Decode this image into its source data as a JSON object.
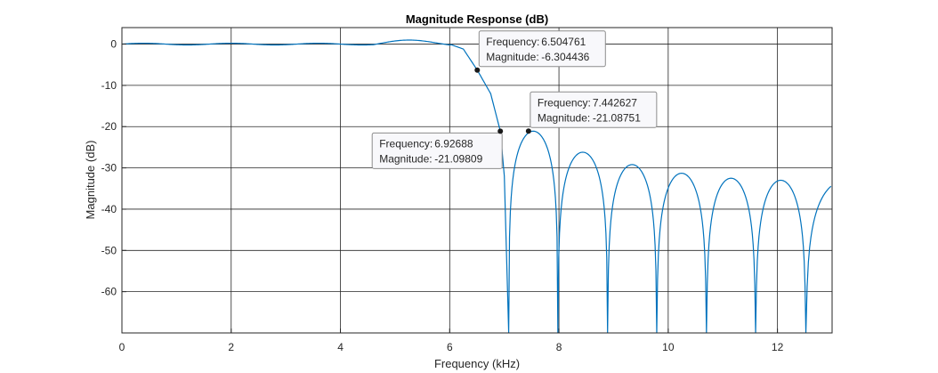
{
  "chart_data": {
    "type": "line",
    "title": "Magnitude Response (dB)",
    "xlabel": "Frequency (kHz)",
    "ylabel": "Magnitude (dB)",
    "xlim": [
      0,
      13
    ],
    "ylim": [
      -70,
      4
    ],
    "x_ticks": [
      0,
      2,
      4,
      6,
      8,
      10,
      12
    ],
    "y_ticks": [
      0,
      -10,
      -20,
      -30,
      -40,
      -50,
      -60
    ],
    "grid": true,
    "line_color": "#0072bd",
    "passband_edge_khz": 6.0,
    "stopband_nulls_khz": [
      7.08,
      7.98,
      8.89,
      9.79,
      10.7,
      11.6,
      12.52
    ],
    "sidelobe_peaks": [
      {
        "x": 7.5,
        "y": -21.1
      },
      {
        "x": 8.4,
        "y": -26.2
      },
      {
        "x": 9.32,
        "y": -29.2
      },
      {
        "x": 10.22,
        "y": -31.3
      },
      {
        "x": 11.14,
        "y": -32.5
      },
      {
        "x": 12.05,
        "y": -33.0
      },
      {
        "x": 13.0,
        "y": -33.2
      }
    ],
    "datatips": [
      {
        "freq_label": "Frequency:",
        "freq_value": "6.504761",
        "mag_label": "Magnitude:",
        "mag_value": "-6.304436",
        "x": 6.504761,
        "y": -6.304436,
        "box": "right"
      },
      {
        "freq_label": "Frequency:",
        "freq_value": "7.442627",
        "mag_label": "Magnitude:",
        "mag_value": "-21.08751",
        "x": 7.442627,
        "y": -21.08751,
        "box": "right"
      },
      {
        "freq_label": "Frequency:",
        "freq_value": "6.92688",
        "mag_label": "Magnitude:",
        "mag_value": "-21.09809",
        "x": 6.92688,
        "y": -21.09809,
        "box": "left"
      }
    ]
  }
}
